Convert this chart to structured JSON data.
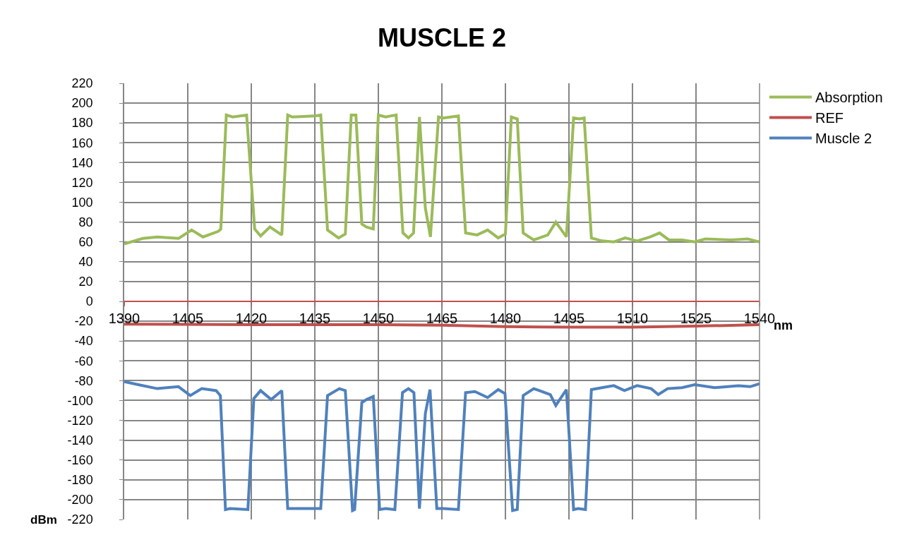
{
  "chart_data": {
    "type": "line",
    "title": "MUSCLE 2",
    "xlabel": "nm",
    "ylabel": "dBm",
    "xlim": [
      1390,
      1540
    ],
    "xticks": [
      1390,
      1405,
      1420,
      1435,
      1450,
      1465,
      1480,
      1495,
      1510,
      1525,
      1540
    ],
    "ylim": [
      -220,
      220
    ],
    "yticks": [
      -220,
      -200,
      -180,
      -160,
      -140,
      -120,
      -100,
      -80,
      -60,
      -40,
      -20,
      0,
      20,
      40,
      60,
      80,
      100,
      120,
      140,
      160,
      180,
      200,
      220
    ],
    "grid": true,
    "legend": "right",
    "marker": "none",
    "line_style": "solid",
    "series": [
      {
        "name": "Absorption",
        "color": "#9bbb59",
        "x": [
          1390,
          1394.4,
          1397.8,
          1402.8,
          1405.9,
          1408.6,
          1412.2,
          1412.8,
          1414.1,
          1415.6,
          1418.9,
          1420.8,
          1422.2,
          1424.4,
          1427.2,
          1428.6,
          1429.7,
          1435,
          1436.4,
          1438,
          1440.6,
          1442.2,
          1443.6,
          1444.7,
          1446.1,
          1447.2,
          1448.8,
          1450,
          1451.7,
          1452.8,
          1454.2,
          1455.8,
          1457.1,
          1458.3,
          1459.7,
          1461.1,
          1462.3,
          1464.2,
          1465.3,
          1468.9,
          1470.6,
          1473.3,
          1475.8,
          1478.3,
          1480,
          1481.4,
          1482.8,
          1484.2,
          1486.7,
          1490,
          1491.9,
          1494.4,
          1496.1,
          1497.5,
          1498.6,
          1500.3,
          1502.8,
          1505.6,
          1508.3,
          1511.1,
          1514.2,
          1516.4,
          1518.6,
          1521.7,
          1524.7,
          1527.2,
          1533.3,
          1537.2,
          1540
        ],
        "values": [
          58,
          63.5,
          65,
          63.5,
          72,
          65,
          70.6,
          73,
          188,
          186,
          188,
          73,
          66,
          75,
          67,
          188,
          186,
          187,
          188,
          72,
          64,
          68,
          188,
          188,
          78,
          75,
          73,
          188,
          186,
          187,
          188,
          69,
          64,
          69,
          186,
          94,
          65,
          186,
          185,
          187,
          69,
          67,
          72,
          64,
          68,
          186,
          184,
          69,
          62,
          67,
          80,
          65,
          185,
          184,
          185,
          64,
          61,
          60,
          64,
          61,
          65,
          69,
          62,
          62,
          60,
          63,
          62,
          63,
          60
        ]
      },
      {
        "name": "REF",
        "color": "#c0504d",
        "x": [
          1390,
          1420,
          1450,
          1465,
          1480,
          1495,
          1510,
          1525,
          1540
        ],
        "values": [
          -23,
          -23.5,
          -23.5,
          -24,
          -25.5,
          -26,
          -26,
          -25,
          -23.5
        ]
      },
      {
        "name": "Muscle 2",
        "color": "#4f81bd",
        "x": [
          1390,
          1393.3,
          1397.8,
          1402.8,
          1405.6,
          1408.3,
          1411.7,
          1412.7,
          1413.9,
          1415,
          1419.2,
          1420.6,
          1422.2,
          1424.7,
          1427.2,
          1428.6,
          1429.4,
          1436.4,
          1438,
          1440.8,
          1442.2,
          1443.9,
          1444.4,
          1446.1,
          1447.2,
          1448.8,
          1450.3,
          1451.7,
          1453.9,
          1455.7,
          1457.1,
          1458.4,
          1459.7,
          1461.1,
          1462.2,
          1463.8,
          1465.3,
          1468.9,
          1470.6,
          1472.8,
          1475.8,
          1478.3,
          1479.9,
          1481.7,
          1482.8,
          1484.2,
          1486.7,
          1490.6,
          1491.9,
          1494.4,
          1496.1,
          1497.2,
          1498.9,
          1500.3,
          1502.8,
          1505.6,
          1508.1,
          1511.1,
          1514.4,
          1516.1,
          1518.3,
          1521.7,
          1524.7,
          1529.4,
          1535,
          1537.8,
          1540
        ],
        "values": [
          -81,
          -84,
          -88,
          -86,
          -95,
          -88,
          -90,
          -95,
          -210,
          -209,
          -210,
          -98,
          -90,
          -99,
          -90,
          -209,
          -209,
          -209,
          -95,
          -88,
          -90,
          -211,
          -210,
          -102,
          -99,
          -96,
          -210,
          -209,
          -210,
          -92,
          -88,
          -92,
          -209,
          -113,
          -89,
          -209,
          -209,
          -210,
          -92,
          -91,
          -97,
          -89,
          -93,
          -211,
          -210,
          -95,
          -88,
          -94,
          -105,
          -89,
          -210,
          -209,
          -210,
          -89,
          -87,
          -85,
          -90,
          -85,
          -88,
          -94,
          -88,
          -87,
          -84,
          -87,
          -85,
          -86,
          -83
        ]
      }
    ]
  }
}
